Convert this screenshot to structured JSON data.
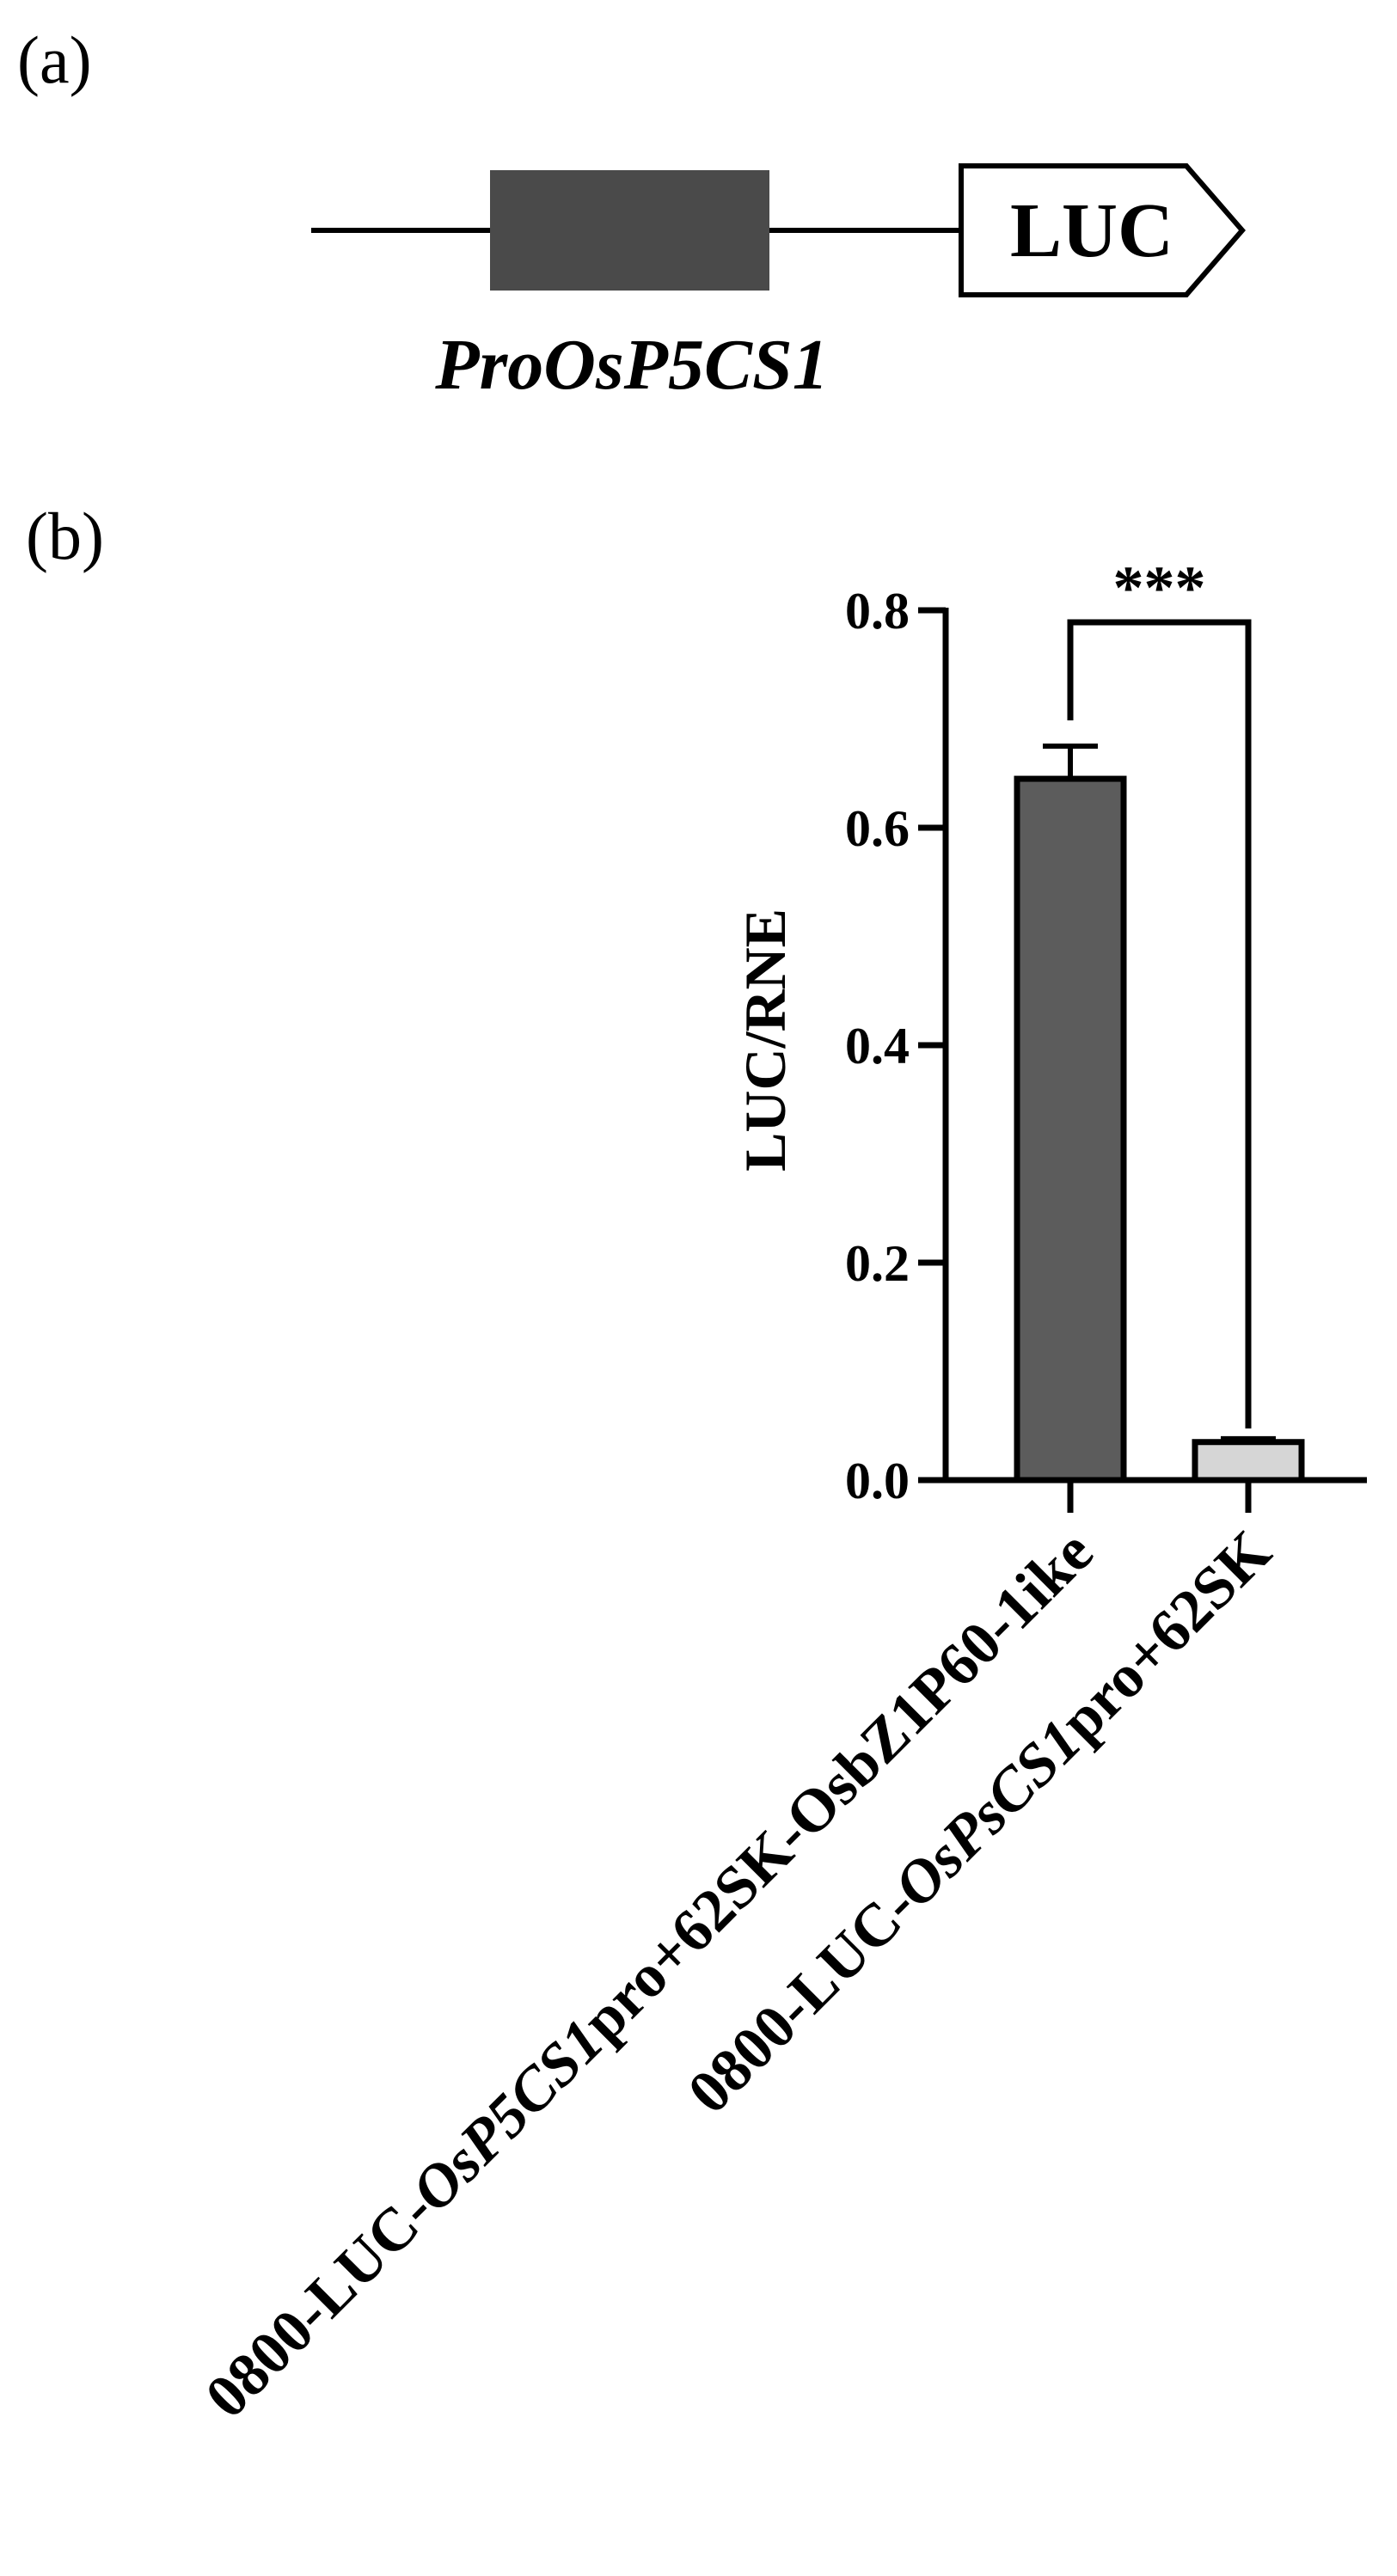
{
  "panel_a": {
    "label": "(a)",
    "box_label": "LUC",
    "promoter_label": "ProOsP5CS1"
  },
  "chart_data": {
    "type": "bar",
    "panel_label": "(b)",
    "ylabel": "LUC/RNE",
    "ylim": [
      0,
      0.8
    ],
    "yticks": [
      "0.0",
      "0.2",
      "0.4",
      "0.6",
      "0.8"
    ],
    "categories": [
      {
        "parts": [
          {
            "text": "0800-LUC-",
            "italic": false
          },
          {
            "text": "OsP5CS1",
            "italic": true
          },
          {
            "text": "pro+62SK-OsbZ1P60-1ike",
            "italic": false
          }
        ]
      },
      {
        "parts": [
          {
            "text": "0800-LUC-",
            "italic": false
          },
          {
            "text": "OsPsCS1",
            "italic": true
          },
          {
            "text": "pro+62SK",
            "italic": false
          }
        ]
      }
    ],
    "values": [
      0.645,
      0.035
    ],
    "errors": [
      0.03,
      0.003
    ],
    "colors": [
      "#5c5c5c",
      "#d6d6d6"
    ],
    "significance": "***"
  }
}
